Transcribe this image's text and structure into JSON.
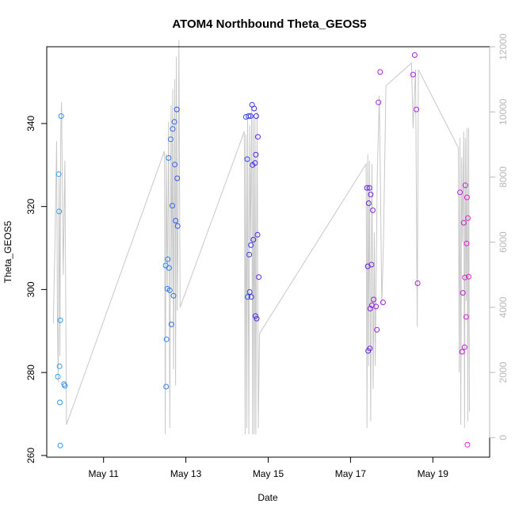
{
  "chart_data": {
    "type": "scatter",
    "title": "ATOM4 Northbound Theta_GEOS5",
    "xlabel": "Date",
    "ylabel": "Theta_GEOS5",
    "x_unit": "day of May 2016",
    "xlim": [
      9.62,
      20.38
    ],
    "ylim": [
      259.6,
      358.5
    ],
    "x_ticks": [
      {
        "value": 11,
        "label": "May 11"
      },
      {
        "value": 13,
        "label": "May 13"
      },
      {
        "value": 15,
        "label": "May 15"
      },
      {
        "value": 17,
        "label": "May 17"
      },
      {
        "value": 19,
        "label": "May 19"
      }
    ],
    "y_ticks": [
      {
        "value": 260,
        "label": "260"
      },
      {
        "value": 280,
        "label": "280"
      },
      {
        "value": 300,
        "label": "300"
      },
      {
        "value": 320,
        "label": "320"
      },
      {
        "value": 340,
        "label": "340"
      }
    ],
    "secondary_axis": {
      "label": "",
      "color": "#b8b8b8",
      "lim": [
        -600,
        12000
      ],
      "ticks": [
        {
          "value": 0,
          "label": "0"
        },
        {
          "value": 2000,
          "label": "2000"
        },
        {
          "value": 4000,
          "label": "4000"
        },
        {
          "value": 6000,
          "label": "6000"
        },
        {
          "value": 8000,
          "label": "8000"
        },
        {
          "value": 10000,
          "label": "10000"
        },
        {
          "value": 12000,
          "label": "12000"
        }
      ]
    },
    "grid": false,
    "legend": "none",
    "color_gradient": [
      "#29a8f5",
      "#3b28e6",
      "#ec1fd2"
    ],
    "points": [
      {
        "x": 9.89,
        "y": 279.0
      },
      {
        "x": 9.91,
        "y": 327.8
      },
      {
        "x": 9.92,
        "y": 318.8
      },
      {
        "x": 9.93,
        "y": 281.5
      },
      {
        "x": 9.94,
        "y": 272.8
      },
      {
        "x": 9.95,
        "y": 292.6
      },
      {
        "x": 9.95,
        "y": 262.4
      },
      {
        "x": 9.97,
        "y": 341.8
      },
      {
        "x": 10.04,
        "y": 277.2
      },
      {
        "x": 10.06,
        "y": 276.8
      },
      {
        "x": 12.51,
        "y": 305.8
      },
      {
        "x": 12.52,
        "y": 276.6
      },
      {
        "x": 12.53,
        "y": 288.0
      },
      {
        "x": 12.55,
        "y": 300.2
      },
      {
        "x": 12.56,
        "y": 307.3
      },
      {
        "x": 12.58,
        "y": 331.7
      },
      {
        "x": 12.59,
        "y": 305.2
      },
      {
        "x": 12.61,
        "y": 299.8
      },
      {
        "x": 12.63,
        "y": 336.2
      },
      {
        "x": 12.65,
        "y": 291.6
      },
      {
        "x": 12.67,
        "y": 320.2
      },
      {
        "x": 12.68,
        "y": 338.7
      },
      {
        "x": 12.7,
        "y": 298.5
      },
      {
        "x": 12.72,
        "y": 340.4
      },
      {
        "x": 12.73,
        "y": 330.1
      },
      {
        "x": 12.75,
        "y": 316.6
      },
      {
        "x": 12.78,
        "y": 343.4
      },
      {
        "x": 12.79,
        "y": 326.8
      },
      {
        "x": 12.8,
        "y": 315.3
      },
      {
        "x": 14.46,
        "y": 341.6
      },
      {
        "x": 14.49,
        "y": 331.4
      },
      {
        "x": 14.5,
        "y": 298.2
      },
      {
        "x": 14.52,
        "y": 341.8
      },
      {
        "x": 14.54,
        "y": 308.4
      },
      {
        "x": 14.55,
        "y": 299.4
      },
      {
        "x": 14.57,
        "y": 341.8
      },
      {
        "x": 14.58,
        "y": 310.7
      },
      {
        "x": 14.59,
        "y": 298.2
      },
      {
        "x": 14.61,
        "y": 344.5
      },
      {
        "x": 14.62,
        "y": 330.0
      },
      {
        "x": 14.64,
        "y": 312.0
      },
      {
        "x": 14.66,
        "y": 343.6
      },
      {
        "x": 14.68,
        "y": 330.5
      },
      {
        "x": 14.69,
        "y": 293.6
      },
      {
        "x": 14.7,
        "y": 332.5
      },
      {
        "x": 14.71,
        "y": 341.8
      },
      {
        "x": 14.72,
        "y": 293.0
      },
      {
        "x": 14.74,
        "y": 313.2
      },
      {
        "x": 14.75,
        "y": 336.8
      },
      {
        "x": 14.77,
        "y": 303.0
      },
      {
        "x": 17.4,
        "y": 324.5
      },
      {
        "x": 17.42,
        "y": 305.6
      },
      {
        "x": 17.43,
        "y": 285.2
      },
      {
        "x": 17.44,
        "y": 320.8
      },
      {
        "x": 17.46,
        "y": 324.5
      },
      {
        "x": 17.47,
        "y": 285.8
      },
      {
        "x": 17.48,
        "y": 295.4
      },
      {
        "x": 17.49,
        "y": 322.9
      },
      {
        "x": 17.51,
        "y": 306.0
      },
      {
        "x": 17.52,
        "y": 296.2
      },
      {
        "x": 17.54,
        "y": 319.1
      },
      {
        "x": 17.56,
        "y": 297.6
      },
      {
        "x": 17.62,
        "y": 295.9
      },
      {
        "x": 17.64,
        "y": 290.3
      },
      {
        "x": 17.68,
        "y": 345.1
      },
      {
        "x": 17.72,
        "y": 352.4
      },
      {
        "x": 17.79,
        "y": 296.9
      },
      {
        "x": 18.52,
        "y": 351.8
      },
      {
        "x": 18.56,
        "y": 356.5
      },
      {
        "x": 18.6,
        "y": 343.4
      },
      {
        "x": 18.63,
        "y": 301.5
      },
      {
        "x": 19.66,
        "y": 323.4
      },
      {
        "x": 19.71,
        "y": 285.0
      },
      {
        "x": 19.73,
        "y": 299.2
      },
      {
        "x": 19.75,
        "y": 316.1
      },
      {
        "x": 19.77,
        "y": 286.1
      },
      {
        "x": 19.78,
        "y": 302.9
      },
      {
        "x": 19.79,
        "y": 325.1
      },
      {
        "x": 19.81,
        "y": 293.4
      },
      {
        "x": 19.82,
        "y": 311.1
      },
      {
        "x": 19.83,
        "y": 322.2
      },
      {
        "x": 19.84,
        "y": 262.6
      },
      {
        "x": 19.85,
        "y": 317.2
      },
      {
        "x": 19.87,
        "y": 303.1
      }
    ],
    "secondary_series": {
      "name": "altitude",
      "type": "line",
      "color": "#c8c8c8",
      "x": [
        9.78,
        9.82,
        9.86,
        9.88,
        9.9,
        9.92,
        9.94,
        9.96,
        9.98,
        10.02,
        10.06,
        10.1,
        12.48,
        12.5,
        12.52,
        12.55,
        12.58,
        12.61,
        12.64,
        12.66,
        12.68,
        12.7,
        12.73,
        12.75,
        12.77,
        12.79,
        12.81,
        12.83,
        12.86,
        14.42,
        14.44,
        14.46,
        14.48,
        14.5,
        14.53,
        14.55,
        14.57,
        14.6,
        14.62,
        14.64,
        14.66,
        14.68,
        14.7,
        14.73,
        14.76,
        14.79,
        17.38,
        17.4,
        17.42,
        17.44,
        17.46,
        17.49,
        17.52,
        17.55,
        17.58,
        17.6,
        17.65,
        17.7,
        17.76,
        17.8,
        17.86,
        18.48,
        18.52,
        18.58,
        18.62,
        18.65,
        19.62,
        19.64,
        19.66,
        19.68,
        19.7,
        19.72,
        19.75,
        19.77,
        19.79,
        19.81,
        19.83,
        19.85,
        19.87,
        19.89
      ],
      "y": [
        3500,
        6000,
        9100,
        3500,
        1700,
        8000,
        2500,
        9400,
        10300,
        5000,
        8500,
        400,
        8800,
        100,
        8700,
        4500,
        9700,
        300,
        10200,
        4600,
        10700,
        2100,
        11000,
        1600,
        11700,
        3900,
        6500,
        12200,
        4000,
        9400,
        100,
        9300,
        300,
        9800,
        100,
        9600,
        6000,
        10200,
        100,
        9900,
        100,
        9800,
        100,
        10000,
        300,
        3200,
        8400,
        300,
        8700,
        2200,
        8500,
        500,
        8400,
        1500,
        6300,
        2200,
        8100,
        10500,
        4100,
        6000,
        10800,
        11500,
        9500,
        11300,
        3400,
        11300,
        8900,
        2000,
        9200,
        400,
        8600,
        6000,
        9400,
        300,
        9200,
        4200,
        9500,
        500,
        9500,
        800
      ]
    }
  }
}
